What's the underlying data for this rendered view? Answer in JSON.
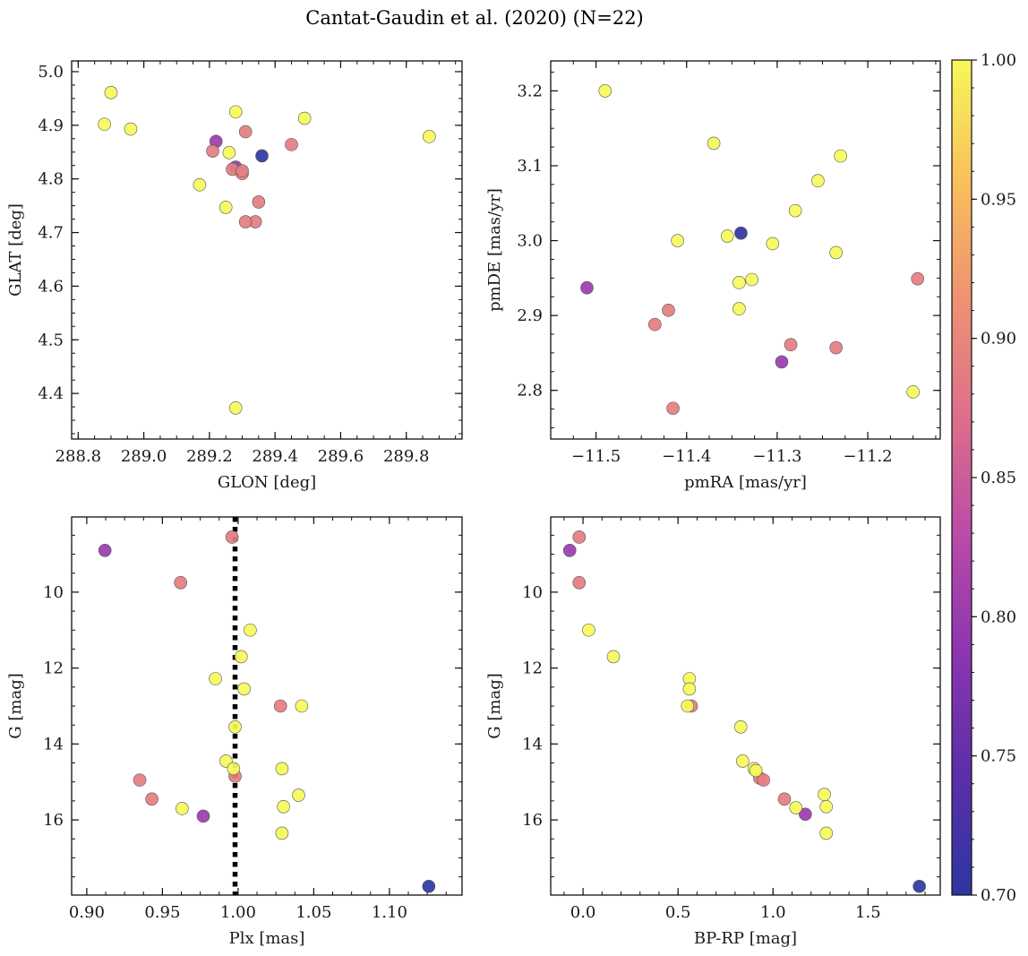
{
  "figure": {
    "title": "Cantat-Gaudin et al. (2020) (N=22)"
  },
  "colormap": {
    "name": "plasma",
    "range": [
      0.7,
      1.0
    ],
    "ticks": [
      0.7,
      0.75,
      0.8,
      0.85,
      0.9,
      0.95,
      1.0
    ],
    "tick_labels": [
      "0.70",
      "0.75",
      "0.80",
      "0.85",
      "0.90",
      "0.95",
      "1.00"
    ],
    "stops": [
      "#2e36a0",
      "#5a2fa8",
      "#8a35b0",
      "#b94aa8",
      "#dd6f8c",
      "#ee9272",
      "#f9c05c",
      "#f6f85a"
    ],
    "point_edge": "#555555"
  },
  "chart_data": [
    {
      "type": "scatter",
      "title": "",
      "xlabel": "GLON [deg]",
      "ylabel": "GLAT [deg]",
      "xlim": [
        288.78,
        289.97
      ],
      "ylim": [
        4.315,
        5.02
      ],
      "xticks": [
        288.8,
        289.0,
        289.2,
        289.4,
        289.6,
        289.8
      ],
      "xtick_labels": [
        "288.8",
        "289.0",
        "289.2",
        "289.4",
        "289.6",
        "289.8"
      ],
      "yticks": [
        4.4,
        4.5,
        4.6,
        4.7,
        4.8,
        4.9,
        5.0
      ],
      "ytick_labels": [
        "4.4",
        "4.5",
        "4.6",
        "4.7",
        "4.8",
        "4.9",
        "5.0"
      ],
      "x": [
        289.22,
        289.28,
        289.21,
        289.27,
        289.3,
        289.35,
        289.34,
        289.31,
        289.3,
        289.45,
        289.31,
        289.36,
        288.88,
        288.9,
        288.96,
        289.17,
        289.25,
        289.26,
        289.28,
        289.28,
        289.49,
        289.87
      ],
      "y": [
        4.87,
        4.822,
        4.852,
        4.818,
        4.81,
        4.757,
        4.72,
        4.888,
        4.815,
        4.864,
        4.72,
        4.843,
        4.902,
        4.961,
        4.893,
        4.789,
        4.747,
        4.849,
        4.925,
        4.373,
        4.913,
        4.879
      ],
      "c": [
        0.8,
        0.8,
        0.89,
        0.89,
        0.89,
        0.89,
        0.89,
        0.89,
        0.89,
        0.89,
        0.89,
        0.7,
        1.0,
        1.0,
        1.0,
        1.0,
        1.0,
        1.0,
        1.0,
        1.0,
        1.0,
        1.0
      ],
      "xminor_step": 0.05,
      "yminor_step": 0.025
    },
    {
      "type": "scatter",
      "title": "",
      "xlabel": "pmRA [mas/yr]",
      "ylabel": "pmDE [mas/yr]",
      "xlim": [
        -11.55,
        -11.12
      ],
      "ylim": [
        2.735,
        3.24
      ],
      "xticks": [
        -11.5,
        -11.4,
        -11.3,
        -11.2
      ],
      "xtick_labels": [
        "−11.5",
        "−11.4",
        "−11.3",
        "−11.2"
      ],
      "yticks": [
        2.8,
        2.9,
        3.0,
        3.1,
        3.2
      ],
      "ytick_labels": [
        "2.8",
        "2.9",
        "3.0",
        "3.1",
        "3.2"
      ],
      "x": [
        -11.51,
        -11.295,
        -11.435,
        -11.42,
        -11.415,
        -11.285,
        -11.235,
        -11.145,
        -11.34,
        -11.49,
        -11.37,
        -11.41,
        -11.355,
        -11.342,
        -11.342,
        -11.328,
        -11.305,
        -11.28,
        -11.255,
        -11.235,
        -11.23,
        -11.15
      ],
      "y": [
        2.937,
        2.838,
        2.888,
        2.907,
        2.776,
        2.861,
        2.857,
        2.949,
        3.01,
        3.2,
        3.13,
        3.0,
        3.006,
        2.944,
        2.909,
        2.948,
        2.996,
        3.04,
        3.08,
        2.984,
        3.113,
        2.798
      ],
      "c": [
        0.8,
        0.8,
        0.89,
        0.89,
        0.89,
        0.89,
        0.89,
        0.89,
        0.7,
        1.0,
        1.0,
        1.0,
        1.0,
        1.0,
        1.0,
        1.0,
        1.0,
        1.0,
        1.0,
        1.0,
        1.0,
        1.0
      ],
      "xminor_step": 0.025,
      "yminor_step": 0.025
    },
    {
      "type": "scatter",
      "title": "",
      "xlabel": "Plx [mas]",
      "ylabel": "G [mag]",
      "xlim": [
        0.89,
        1.148
      ],
      "ylim": [
        17.98,
        8.02
      ],
      "xticks": [
        0.9,
        0.95,
        1.0,
        1.05,
        1.1
      ],
      "xtick_labels": [
        "0.90",
        "0.95",
        "1.00",
        "1.05",
        "1.10"
      ],
      "yticks": [
        10,
        12,
        14,
        16
      ],
      "ytick_labels": [
        "10",
        "12",
        "14",
        "16"
      ],
      "vline": 0.998,
      "x": [
        0.912,
        0.977,
        0.996,
        0.962,
        1.028,
        0.935,
        0.943,
        0.998,
        1.126,
        1.008,
        1.002,
        0.985,
        1.004,
        1.042,
        0.998,
        0.992,
        0.997,
        1.029,
        1.04,
        1.03,
        0.963,
        1.029
      ],
      "y": [
        8.9,
        15.9,
        8.55,
        9.75,
        13.0,
        14.95,
        15.45,
        14.85,
        17.75,
        11.0,
        11.7,
        12.28,
        12.55,
        13.0,
        13.55,
        14.45,
        14.65,
        14.65,
        15.35,
        15.65,
        15.7,
        16.35
      ],
      "c": [
        0.8,
        0.8,
        0.89,
        0.89,
        0.89,
        0.89,
        0.89,
        0.89,
        0.7,
        1.0,
        1.0,
        1.0,
        1.0,
        1.0,
        1.0,
        1.0,
        1.0,
        1.0,
        1.0,
        1.0,
        1.0,
        1.0
      ],
      "xminor_step": 0.0125,
      "yminor_step": 0.5
    },
    {
      "type": "scatter",
      "title": "",
      "xlabel": "BP-RP [mag]",
      "ylabel": "G [mag]",
      "xlim": [
        -0.17,
        1.88
      ],
      "ylim": [
        17.98,
        8.02
      ],
      "xticks": [
        0.0,
        0.5,
        1.0,
        1.5
      ],
      "xtick_labels": [
        "0.0",
        "0.5",
        "1.0",
        "1.5"
      ],
      "yticks": [
        10,
        12,
        14,
        16
      ],
      "ytick_labels": [
        "10",
        "12",
        "14",
        "16"
      ],
      "x": [
        -0.07,
        1.17,
        -0.02,
        -0.02,
        0.57,
        0.93,
        0.95,
        1.06,
        1.77,
        0.03,
        0.16,
        0.56,
        0.56,
        0.55,
        0.83,
        0.84,
        0.9,
        1.12,
        1.27,
        1.28,
        1.28,
        0.91
      ],
      "y": [
        8.9,
        15.85,
        8.55,
        9.75,
        13.0,
        14.9,
        14.95,
        15.45,
        17.75,
        11.0,
        11.7,
        12.28,
        12.55,
        13.0,
        13.55,
        14.45,
        14.65,
        15.68,
        15.33,
        15.65,
        16.35,
        14.7
      ],
      "c": [
        0.8,
        0.8,
        0.89,
        0.89,
        0.89,
        0.89,
        0.89,
        0.89,
        0.7,
        1.0,
        1.0,
        1.0,
        1.0,
        1.0,
        1.0,
        1.0,
        1.0,
        1.0,
        1.0,
        1.0,
        1.0,
        1.0
      ],
      "xminor_step": 0.1,
      "yminor_step": 0.5
    }
  ]
}
